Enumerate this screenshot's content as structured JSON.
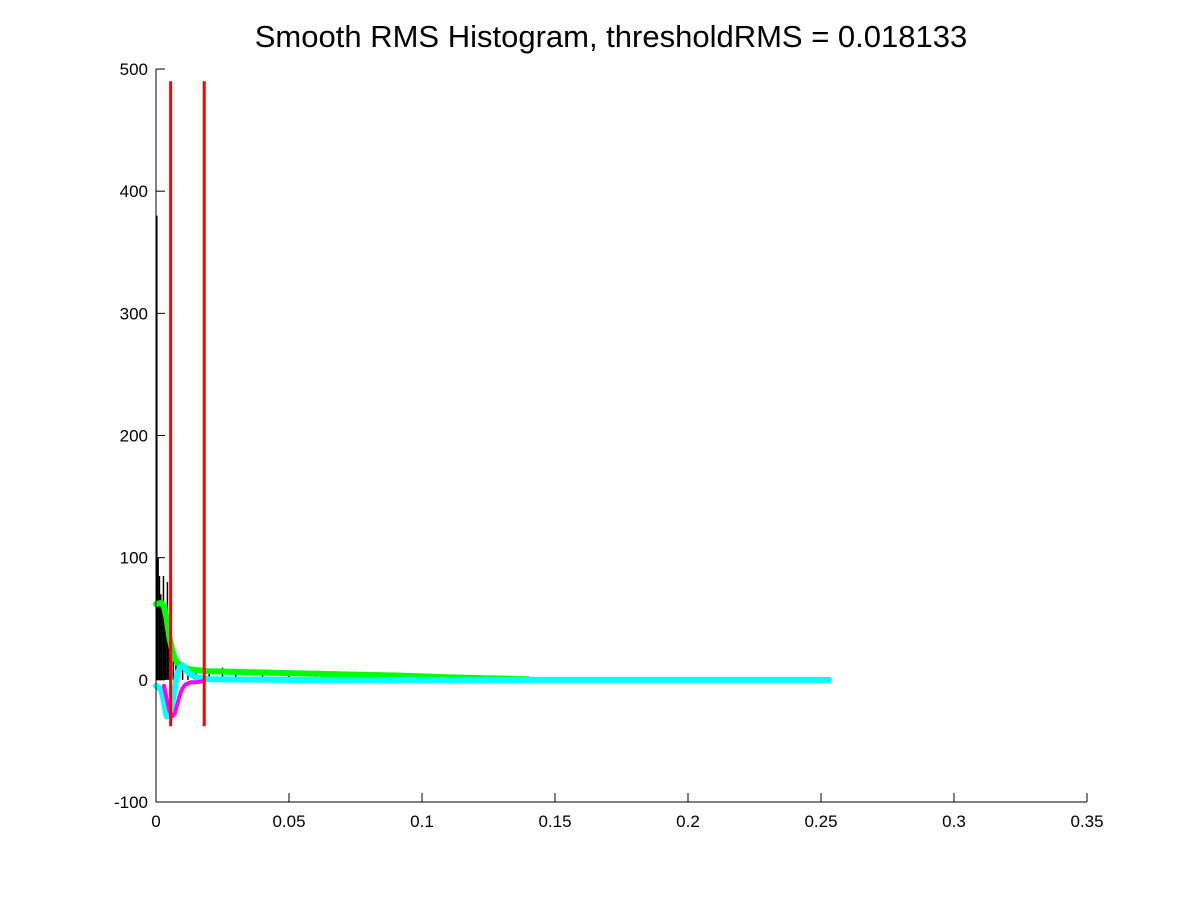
{
  "chart_data": {
    "type": "line",
    "title": "Smooth RMS Histogram, thresholdRMS = 0.018133",
    "xlabel": "",
    "ylabel": "",
    "xlim": [
      0,
      0.35
    ],
    "ylim": [
      -100,
      500
    ],
    "x_ticks": [
      "0",
      "0.05",
      "0.1",
      "0.15",
      "0.2",
      "0.25",
      "0.3",
      "0.35"
    ],
    "y_ticks": [
      "-100",
      "0",
      "100",
      "200",
      "300",
      "400",
      "500"
    ],
    "grid": false,
    "legend": "none",
    "colors": {
      "histogram": "#000000",
      "smooth": "#00ff00",
      "first_derivative": "#00ffff",
      "second_derivative": "#ff00ff",
      "threshold_lines": "#ff0000"
    },
    "series": [
      {
        "role": "histogram",
        "style": "bars",
        "x": [
          0.0003,
          0.0008,
          0.0013,
          0.0018,
          0.0023,
          0.0028,
          0.0033,
          0.0038,
          0.0043,
          0.0048,
          0.0055,
          0.0065,
          0.0075,
          0.0085,
          0.01,
          0.012,
          0.015,
          0.02,
          0.025,
          0.03,
          0.04,
          0.05,
          0.06,
          0.07,
          0.08,
          0.09,
          0.1,
          0.11,
          0.12,
          0.13,
          0.14
        ],
        "values": [
          380,
          100,
          85,
          70,
          65,
          85,
          60,
          55,
          80,
          50,
          30,
          20,
          15,
          12,
          10,
          9,
          8,
          9,
          10,
          8,
          8,
          7,
          7,
          6,
          5,
          5,
          4,
          4,
          3,
          2,
          1
        ]
      },
      {
        "role": "smooth",
        "style": "thick-line",
        "x": [
          0,
          0.002,
          0.003,
          0.004,
          0.005,
          0.006,
          0.007,
          0.008,
          0.01,
          0.012,
          0.015,
          0.02,
          0.03,
          0.05,
          0.07,
          0.09,
          0.11,
          0.14
        ],
        "values": [
          62,
          63,
          60,
          50,
          35,
          25,
          18,
          14,
          11,
          9,
          8,
          7,
          6.5,
          5.5,
          4.5,
          3.5,
          2,
          0.5
        ]
      },
      {
        "role": "first_derivative",
        "style": "thick-line",
        "x": [
          0,
          0.002,
          0.003,
          0.004,
          0.005,
          0.006,
          0.007,
          0.008,
          0.009,
          0.01,
          0.012,
          0.015,
          0.02,
          0.05,
          0.1,
          0.15,
          0.2,
          0.253
        ],
        "values": [
          -5,
          -8,
          -18,
          -30,
          -28,
          -20,
          -8,
          5,
          10,
          12,
          6,
          2,
          0.5,
          0,
          0,
          0,
          0,
          0
        ]
      },
      {
        "role": "second_derivative",
        "style": "line",
        "x": [
          0.003,
          0.004,
          0.005,
          0.006,
          0.007,
          0.008,
          0.009,
          0.01,
          0.011,
          0.012,
          0.013,
          0.015,
          0.018
        ],
        "values": [
          -5,
          -15,
          -25,
          -30,
          -28,
          -20,
          -12,
          -7,
          -4,
          -3,
          -2,
          -2,
          -1
        ]
      },
      {
        "role": "threshold_lines",
        "style": "vertical-lines",
        "x": [
          0.0055,
          0.018133
        ],
        "y_range": [
          -38,
          490
        ]
      }
    ]
  }
}
